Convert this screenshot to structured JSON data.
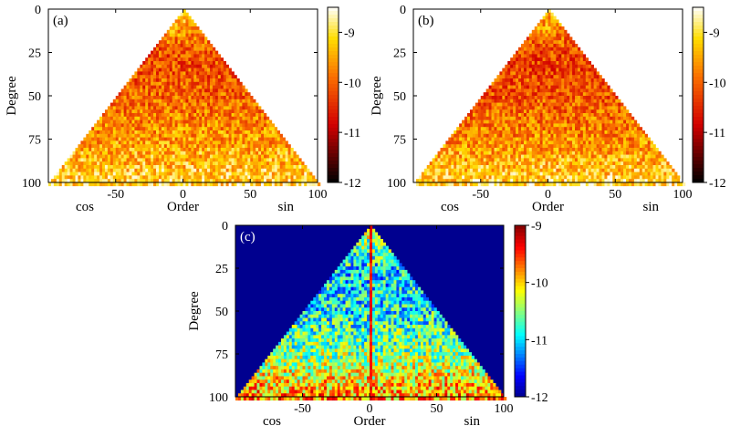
{
  "chart_data": [
    {
      "id": "a",
      "type": "heatmap",
      "panel_label": "(a)",
      "xlabel": "Order",
      "ylabel": "Degree",
      "x_left_label": "cos",
      "x_right_label": "sin",
      "xlim": [
        -100,
        100
      ],
      "ylim": [
        0,
        100
      ],
      "y_inverted": true,
      "xticks": [
        -50,
        0,
        50,
        100
      ],
      "yticks": [
        0,
        25,
        50,
        75,
        100
      ],
      "colormap": "hot",
      "color_range": [
        -12,
        -8.5
      ],
      "colorbar_ticks": [
        -12,
        -11,
        -10,
        -9
      ],
      "value_summary": [
        {
          "degree": 0,
          "value": -9.2
        },
        {
          "degree": 25,
          "value": -10.2
        },
        {
          "degree": 50,
          "value": -10.0
        },
        {
          "degree": 75,
          "value": -9.6
        },
        {
          "degree": 100,
          "value": -9.1
        }
      ]
    },
    {
      "id": "b",
      "type": "heatmap",
      "panel_label": "(b)",
      "xlabel": "Order",
      "ylabel": "Degree",
      "x_left_label": "cos",
      "x_right_label": "sin",
      "xlim": [
        -100,
        100
      ],
      "ylim": [
        0,
        100
      ],
      "y_inverted": true,
      "xticks": [
        -50,
        0,
        50,
        100
      ],
      "yticks": [
        0,
        25,
        50,
        75,
        100
      ],
      "colormap": "hot",
      "color_range": [
        -12,
        -8.5
      ],
      "colorbar_ticks": [
        -12,
        -11,
        -10,
        -9
      ],
      "value_summary": [
        {
          "degree": 0,
          "value": -9.3
        },
        {
          "degree": 25,
          "value": -10.3
        },
        {
          "degree": 50,
          "value": -10.1
        },
        {
          "degree": 75,
          "value": -9.7
        },
        {
          "degree": 100,
          "value": -9.1
        }
      ]
    },
    {
      "id": "c",
      "type": "heatmap",
      "panel_label": "(c)",
      "xlabel": "Order",
      "ylabel": "Degree",
      "x_left_label": "cos",
      "x_right_label": "sin",
      "xlim": [
        -100,
        100
      ],
      "ylim": [
        0,
        100
      ],
      "y_inverted": true,
      "xticks": [
        -50,
        0,
        50,
        100
      ],
      "yticks": [
        0,
        25,
        50,
        75,
        100
      ],
      "colormap": "jet",
      "color_range": [
        -12,
        -9
      ],
      "colorbar_ticks": [
        -12,
        -11,
        -10,
        -9
      ],
      "background_value": -12,
      "value_summary": [
        {
          "degree": 0,
          "value": -10.2
        },
        {
          "degree": 25,
          "value": -11.0
        },
        {
          "degree": 50,
          "value": -10.9
        },
        {
          "degree": 75,
          "value": -10.5
        },
        {
          "degree": 100,
          "value": -9.8
        }
      ],
      "zero_order_line_value": -9.4
    }
  ]
}
